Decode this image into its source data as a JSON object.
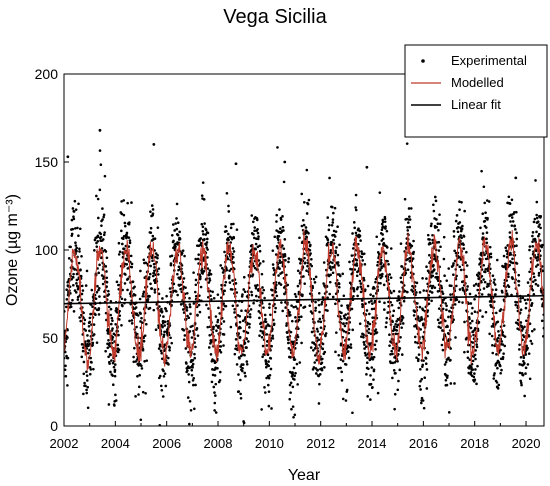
{
  "chart_data": {
    "type": "scatter",
    "title": "Vega Sicilia",
    "xlabel": "Year",
    "ylabel": "Ozone (µg m⁻³)",
    "xlim": [
      2002,
      2020.7
    ],
    "ylim": [
      0,
      200
    ],
    "x_ticks": [
      2002,
      2004,
      2006,
      2008,
      2010,
      2012,
      2014,
      2016,
      2018,
      2020
    ],
    "y_ticks": [
      0,
      50,
      100,
      150,
      200
    ],
    "legend_position": "top-right",
    "grid": false,
    "series": [
      {
        "name": "Experimental",
        "kind": "points",
        "color": "#000000",
        "description_model": {
          "mean_at_2002": 69.5,
          "slope_per_year": 0.25,
          "seasonal_amplitude": 30,
          "peak_month": "June"
        }
      },
      {
        "name": "Modelled",
        "kind": "line",
        "color": "#c0392b",
        "mean_at_2002": 69.5,
        "slope_per_year": 0.25,
        "seasonal_amplitude": 30,
        "points_per_year": 52
      },
      {
        "name": "Linear fit",
        "kind": "line",
        "color": "#000000",
        "x": [
          2002,
          2020.7
        ],
        "y": [
          69.5,
          74.0
        ]
      }
    ],
    "sample_extremes": [
      {
        "x": 2002.15,
        "y": 153
      },
      {
        "x": 2003.4,
        "y": 168
      },
      {
        "x": 2005.5,
        "y": 160
      },
      {
        "x": 2008.7,
        "y": 149
      },
      {
        "x": 2010.6,
        "y": 150
      },
      {
        "x": 2013.8,
        "y": 147
      },
      {
        "x": 2019.6,
        "y": 141
      }
    ]
  }
}
